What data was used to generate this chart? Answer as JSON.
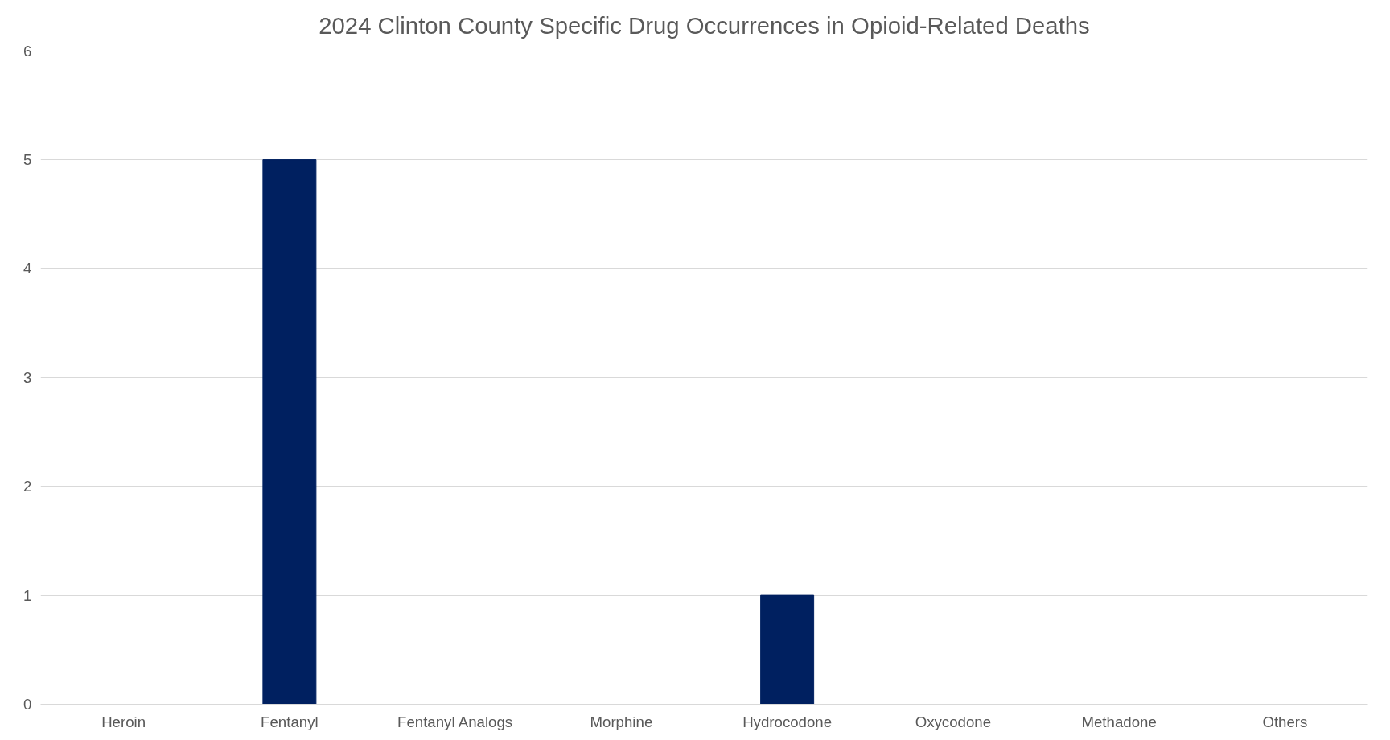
{
  "chart_data": {
    "type": "bar",
    "title": "2024 Clinton County Specific Drug Occurrences in Opioid-Related Deaths",
    "categories": [
      "Heroin",
      "Fentanyl",
      "Fentanyl Analogs",
      "Morphine",
      "Hydrocodone",
      "Oxycodone",
      "Methadone",
      "Others"
    ],
    "values": [
      0,
      5,
      0,
      0,
      1,
      0,
      0,
      0
    ],
    "color": "#002060",
    "ylim": [
      0,
      6
    ],
    "yticks": [
      0,
      1,
      2,
      3,
      4,
      5,
      6
    ],
    "grid": "y"
  }
}
